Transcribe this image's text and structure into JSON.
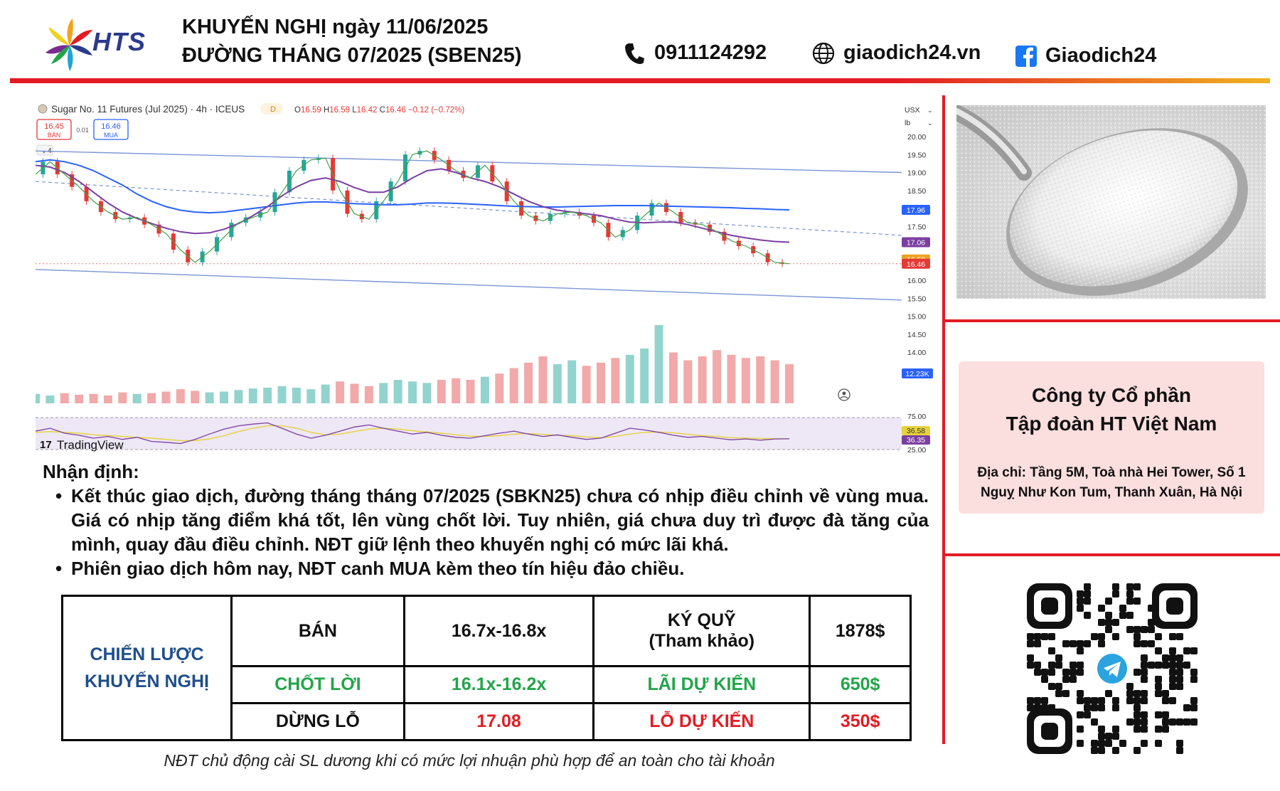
{
  "header": {
    "brand": "HTS",
    "title_line1": "KHUYẾN NGHỊ ngày 11/06/2025",
    "title_line2": "ĐƯỜNG THÁNG 07/2025 (SBEN25)",
    "phone": "0911124292",
    "website": "giaodich24.vn",
    "facebook": "Giaodich24"
  },
  "chart_data": {
    "type": "line",
    "title": "Sugar No. 11 Futures (Jul 2025) · 4h · ICEUS",
    "ohlc_readout": {
      "o_label": "O",
      "o": "16.59",
      "h_label": "H",
      "h": "16.59",
      "l_label": "L",
      "l": "16.42",
      "c_label": "C",
      "c": "16.46",
      "change": "−0.12 (−0.72%)"
    },
    "period_badge": "D",
    "sell_box": {
      "price": "16.45",
      "label": "BÁN"
    },
    "spread": "0.01",
    "buy_box": {
      "price": "16.46",
      "label": "MUA"
    },
    "indicator_count": "4",
    "currency": "USX",
    "unit": "lb",
    "y_ticks": [
      "20.00",
      "19.50",
      "19.00",
      "18.50",
      "18.00",
      "17.50",
      "17.00",
      "16.50",
      "16.00",
      "15.50",
      "15.00",
      "14.50",
      "14.00"
    ],
    "ylim": [
      14.0,
      20.0
    ],
    "price_tags": [
      {
        "value": "17.96",
        "color": "#2962ff"
      },
      {
        "value": "17.06",
        "color": "#7b3fa0"
      },
      {
        "value": "16.58",
        "color": "#f0a020"
      },
      {
        "value": "16.46",
        "color": "#e53935"
      }
    ],
    "volume_tag": "12.23K",
    "rsi_ticks": [
      "75.00",
      "25.00"
    ],
    "rsi_tags": [
      {
        "value": "36.58",
        "color": "#e6d23a"
      },
      {
        "value": "36.35",
        "color": "#7b3fa0"
      }
    ],
    "watermark": "TradingView",
    "price_series": [
      18.95,
      19.3,
      18.95,
      18.6,
      18.2,
      17.9,
      17.7,
      17.75,
      17.55,
      17.3,
      16.85,
      16.5,
      16.8,
      17.2,
      17.6,
      17.75,
      17.9,
      18.45,
      19.05,
      19.35,
      19.4,
      18.5,
      17.85,
      17.7,
      18.2,
      18.75,
      19.5,
      19.6,
      19.35,
      19.05,
      18.85,
      19.2,
      18.75,
      18.2,
      17.8,
      17.65,
      17.85,
      17.9,
      17.8,
      17.6,
      17.2,
      17.4,
      17.8,
      18.15,
      17.9,
      17.6,
      17.55,
      17.35,
      17.1,
      16.95,
      16.75,
      16.5,
      16.46
    ],
    "ma_slow": [
      19.3,
      19.35,
      19.3,
      19.2,
      19.05,
      18.85,
      18.65,
      18.4,
      18.2,
      18.05,
      17.95,
      17.9,
      17.88,
      17.9,
      17.95,
      18.0,
      18.05,
      18.1,
      18.15,
      18.18,
      18.18,
      18.16,
      18.13,
      18.12,
      18.1,
      18.1,
      18.12,
      18.15,
      18.15,
      18.14,
      18.12,
      18.1,
      18.08,
      18.06,
      18.05,
      18.04,
      18.04,
      18.05,
      18.06,
      18.07,
      18.08,
      18.08,
      18.08,
      18.07,
      18.06,
      18.05,
      18.04,
      18.03,
      18.02,
      18.0,
      17.99,
      17.97,
      17.96
    ],
    "ma_mid": [
      19.2,
      19.15,
      19.0,
      18.75,
      18.45,
      18.15,
      17.9,
      17.72,
      17.58,
      17.45,
      17.35,
      17.3,
      17.32,
      17.42,
      17.58,
      17.8,
      18.05,
      18.35,
      18.6,
      18.78,
      18.85,
      18.75,
      18.58,
      18.45,
      18.45,
      18.6,
      18.85,
      19.05,
      19.1,
      19.0,
      18.85,
      18.75,
      18.6,
      18.4,
      18.2,
      18.05,
      17.95,
      17.9,
      17.85,
      17.8,
      17.7,
      17.62,
      17.6,
      17.62,
      17.62,
      17.55,
      17.45,
      17.35,
      17.25,
      17.18,
      17.12,
      17.08,
      17.06
    ],
    "volume_series": [
      0.12,
      0.1,
      0.13,
      0.11,
      0.12,
      0.1,
      0.14,
      0.12,
      0.13,
      0.15,
      0.18,
      0.16,
      0.14,
      0.15,
      0.17,
      0.19,
      0.2,
      0.22,
      0.2,
      0.18,
      0.24,
      0.28,
      0.25,
      0.22,
      0.26,
      0.3,
      0.28,
      0.26,
      0.3,
      0.32,
      0.3,
      0.34,
      0.38,
      0.45,
      0.52,
      0.6,
      0.5,
      0.55,
      0.48,
      0.52,
      0.58,
      0.62,
      0.7,
      1.0,
      0.65,
      0.55,
      0.6,
      0.68,
      0.62,
      0.58,
      0.6,
      0.55,
      0.5
    ],
    "rsi_series": [
      55,
      62,
      50,
      45,
      38,
      42,
      35,
      40,
      30,
      28,
      25,
      35,
      48,
      60,
      68,
      72,
      75,
      62,
      48,
      38,
      45,
      55,
      65,
      70,
      62,
      55,
      48,
      52,
      45,
      40,
      38,
      44,
      50,
      55,
      48,
      42,
      46,
      40,
      35,
      38,
      50,
      62,
      58,
      52,
      45,
      40,
      42,
      38,
      34,
      36,
      33,
      36,
      36.35
    ],
    "rsi_signal": [
      52,
      54,
      52,
      50,
      46,
      44,
      42,
      40,
      38,
      35,
      32,
      32,
      36,
      44,
      54,
      62,
      68,
      68,
      62,
      52,
      46,
      48,
      54,
      60,
      62,
      60,
      56,
      53,
      50,
      46,
      43,
      42,
      44,
      48,
      49,
      47,
      45,
      44,
      41,
      39,
      42,
      48,
      52,
      53,
      51,
      47,
      44,
      42,
      39,
      38,
      37,
      36.6,
      36.58
    ],
    "channel_upper": [
      19.6,
      19.0
    ],
    "channel_lower": [
      16.3,
      15.45
    ],
    "channel_mid_dashed": [
      18.75,
      17.25
    ],
    "support_dotted": 16.46
  },
  "right_panel": {
    "company_name_line1": "Công ty Cổ phần",
    "company_name_line2": "Tập đoàn HT Việt Nam",
    "address_line1": "Địa chỉ: Tầng 5M, Toà nhà Hei Tower, Số 1",
    "address_line2": "Nguỵ Như Kon Tum, Thanh Xuân, Hà Nội"
  },
  "analysis": {
    "heading": "Nhận định:",
    "bullet_symbol": "•",
    "bullet1": "Kết thúc giao dịch, đường tháng tháng 07/2025 (SBKN25) chưa có nhịp điều chỉnh về vùng mua. Giá có nhịp tăng điểm khá tốt, lên vùng chốt lời. Tuy nhiên, giá chưa duy trì được đà tăng của mình, quay đầu điều chỉnh. NĐT giữ lệnh theo khuyến nghị có mức lãi khá.",
    "bullet2": "Phiên giao dịch hôm nay, NĐT canh MUA kèm theo tín hiệu đảo chiều."
  },
  "strategy": {
    "label_line1": "CHIẾN LƯỢC",
    "label_line2": "KHUYẾN NGHỊ",
    "row1": {
      "action": "BÁN",
      "range": "16.7x-16.8x",
      "metric_line1": "KÝ QUỸ",
      "metric_line2": "(Tham khảo)",
      "amount": "1878$"
    },
    "row2": {
      "action": "CHỐT LỜI",
      "range": "16.1x-16.2x",
      "metric": "LÃI DỰ KIẾN",
      "amount": "650$"
    },
    "row3": {
      "action": "DỪNG LỖ",
      "range": "17.08",
      "metric": "LỖ DỰ KIẾN",
      "amount": "350$"
    }
  },
  "footer_note": "NĐT chủ động cài SL dương khi có mức lợi nhuận phù hợp để an toàn cho tài khoản",
  "colors": {
    "accent_red": "#e31b23",
    "accent_orange": "#f0b323",
    "label_blue": "#1f4e8c",
    "profit_green": "#22a54a"
  }
}
